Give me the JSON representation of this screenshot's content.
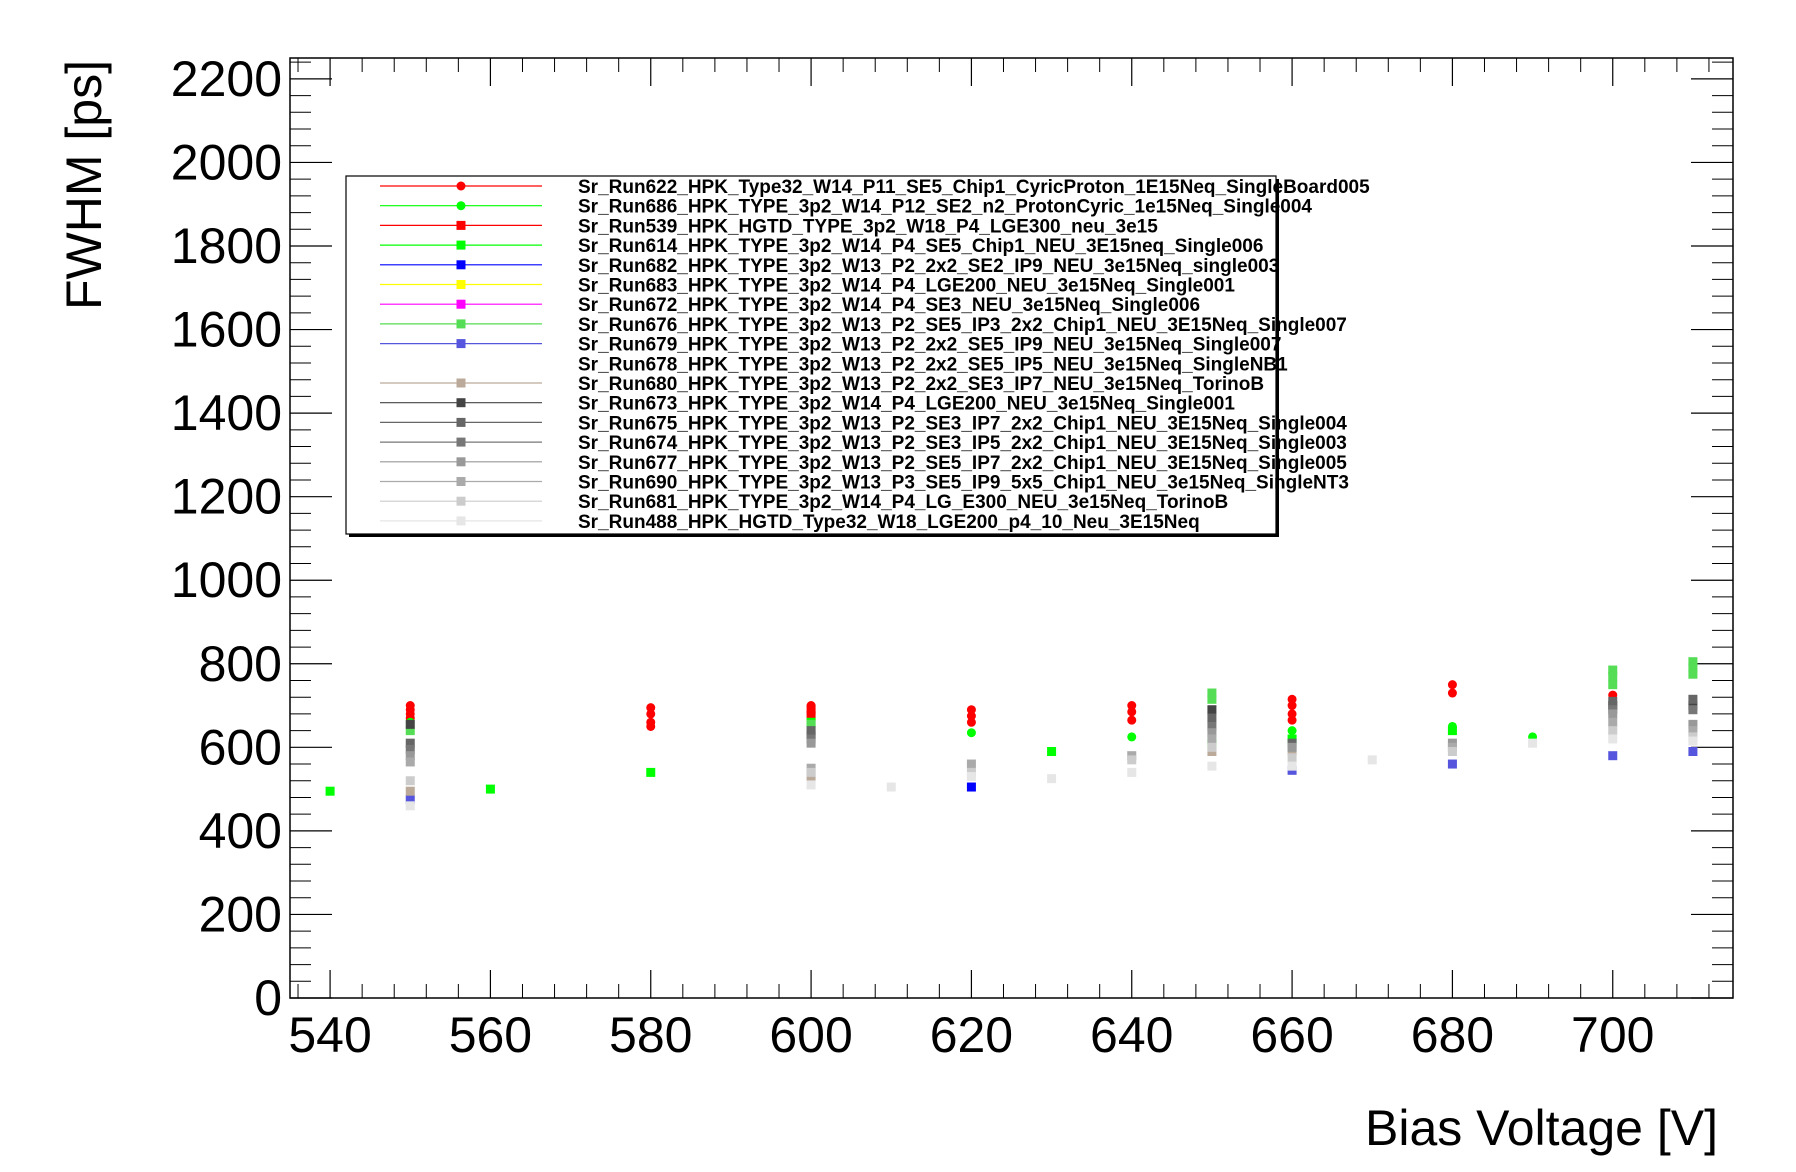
{
  "chart_data": {
    "type": "scatter",
    "title": "",
    "xlabel": "Bias Voltage [V]",
    "ylabel": "FWHM [ps]",
    "xlim": [
      535,
      715
    ],
    "ylim": [
      0,
      2250
    ],
    "x_ticks": [
      "540",
      "560",
      "580",
      "600",
      "620",
      "640",
      "660",
      "680",
      "700"
    ],
    "y_ticks": [
      "0",
      "200",
      "400",
      "600",
      "800",
      "1000",
      "1200",
      "1400",
      "1600",
      "1800",
      "2000",
      "2200"
    ],
    "grid": false,
    "legend_position": "top-left",
    "series": [
      {
        "name": "Sr_Run622_HPK_Type32_W14_P11_SE5_Chip1_CyricProton_1E15Neq_SingleBoard005",
        "color": "#ff0000",
        "marker": "circle",
        "points": [
          [
            550,
            700
          ],
          [
            550,
            690
          ],
          [
            550,
            680
          ],
          [
            550,
            670
          ],
          [
            580,
            695
          ],
          [
            580,
            680
          ],
          [
            580,
            660
          ],
          [
            580,
            650
          ],
          [
            600,
            700
          ],
          [
            600,
            685
          ],
          [
            620,
            690
          ],
          [
            620,
            675
          ],
          [
            620,
            660
          ],
          [
            640,
            700
          ],
          [
            640,
            685
          ],
          [
            640,
            665
          ],
          [
            660,
            715
          ],
          [
            660,
            700
          ],
          [
            660,
            680
          ],
          [
            660,
            665
          ],
          [
            680,
            750
          ],
          [
            680,
            730
          ],
          [
            700,
            725
          ]
        ]
      },
      {
        "name": "Sr_Run686_HPK_TYPE_3p2_W14_P12_SE2_n2_ProtonCyric_1e15Neq_Single004",
        "color": "#00ff00",
        "marker": "circle",
        "points": [
          [
            550,
            660
          ],
          [
            600,
            650
          ],
          [
            620,
            635
          ],
          [
            640,
            625
          ],
          [
            660,
            640
          ],
          [
            680,
            650
          ],
          [
            690,
            625
          ]
        ]
      },
      {
        "name": "Sr_Run539_HPK_HGTD_TYPE_3p2_W18_P4_LGE300_neu_3e15",
        "color": "#ff0000",
        "marker": "square",
        "points": [
          [
            600,
            690
          ],
          [
            600,
            675
          ]
        ]
      },
      {
        "name": "Sr_Run614_HPK_TYPE_3p2_W14_P4_SE5_Chip1_NEU_3E15neq_Single006",
        "color": "#00ff00",
        "marker": "square",
        "points": [
          [
            540,
            495
          ],
          [
            560,
            500
          ],
          [
            580,
            540
          ],
          [
            600,
            660
          ],
          [
            630,
            590
          ],
          [
            650,
            610
          ],
          [
            660,
            620
          ],
          [
            680,
            640
          ]
        ]
      },
      {
        "name": "Sr_Run682_HPK_TYPE_3p2_W13_P2_2x2_SE2_IP9_NEU_3e15Neq_single003",
        "color": "#0000ff",
        "marker": "square",
        "points": [
          [
            620,
            505
          ]
        ]
      },
      {
        "name": "Sr_Run683_HPK_TYPE_3p2_W14_P4_LGE200_NEU_3e15Neq_Single001",
        "color": "#ffff00",
        "marker": "square",
        "points": []
      },
      {
        "name": "Sr_Run672_HPK_TYPE_3p2_W14_P4_SE3_NEU_3e15Neq_Single006",
        "color": "#ff00ff",
        "marker": "square",
        "points": []
      },
      {
        "name": "Sr_Run676_HPK_TYPE_3p2_W13_P2_SE5_IP3_2x2_Chip1_NEU_3E15Neq_Single007",
        "color": "#55dd55",
        "marker": "square",
        "points": [
          [
            550,
            640
          ],
          [
            600,
            655
          ],
          [
            650,
            730
          ],
          [
            650,
            715
          ],
          [
            700,
            785
          ],
          [
            700,
            770
          ],
          [
            700,
            750
          ],
          [
            710,
            805
          ],
          [
            710,
            790
          ],
          [
            710,
            775
          ]
        ]
      },
      {
        "name": "Sr_Run679_HPK_TYPE_3p2_W13_P2_2x2_SE5_IP9_NEU_3e15Neq_Single007",
        "color": "#5555dd",
        "marker": "square",
        "points": [
          [
            550,
            475
          ],
          [
            660,
            545
          ],
          [
            680,
            560
          ],
          [
            700,
            580
          ],
          [
            710,
            590
          ]
        ]
      },
      {
        "name": "Sr_Run678_HPK_TYPE_3p2_W13_P2_2x2_SE5_IP5_NEU_3e15Neq_SingleNB1",
        "color": "#ffffff",
        "marker": "none",
        "points": []
      },
      {
        "name": "Sr_Run680_HPK_TYPE_3p2_W13_P2_2x2_SE3_IP7_NEU_3e15Neq_TorinoB",
        "color": "#bbaa99",
        "marker": "square",
        "points": [
          [
            550,
            495
          ],
          [
            600,
            530
          ],
          [
            650,
            590
          ],
          [
            660,
            590
          ]
        ]
      },
      {
        "name": "Sr_Run673_HPK_TYPE_3p2_W14_P4_LGE200_NEU_3e15Neq_Single001",
        "color": "#444444",
        "marker": "square",
        "points": [
          [
            550,
            655
          ],
          [
            600,
            630
          ],
          [
            650,
            690
          ],
          [
            700,
            700
          ],
          [
            710,
            700
          ]
        ]
      },
      {
        "name": "Sr_Run675_HPK_TYPE_3p2_W13_P2_SE3_IP7_2x2_Chip1_NEU_3E15Neq_Single004",
        "color": "#666666",
        "marker": "square",
        "points": [
          [
            550,
            610
          ],
          [
            600,
            640
          ],
          [
            650,
            670
          ],
          [
            660,
            610
          ],
          [
            700,
            710
          ],
          [
            710,
            715
          ]
        ]
      },
      {
        "name": "Sr_Run674_HPK_TYPE_3p2_W13_P2_SE3_IP5_2x2_Chip1_NEU_3E15Neq_Single003",
        "color": "#777777",
        "marker": "square",
        "points": [
          [
            550,
            595
          ],
          [
            600,
            620
          ],
          [
            650,
            650
          ],
          [
            700,
            690
          ],
          [
            710,
            690
          ]
        ]
      },
      {
        "name": "Sr_Run677_HPK_TYPE_3p2_W13_P2_SE5_IP7_2x2_Chip1_NEU_3E15Neq_Single005",
        "color": "#999999",
        "marker": "square",
        "points": [
          [
            550,
            580
          ],
          [
            600,
            610
          ],
          [
            650,
            635
          ],
          [
            660,
            600
          ],
          [
            680,
            610
          ],
          [
            700,
            680
          ],
          [
            710,
            655
          ]
        ]
      },
      {
        "name": "Sr_Run690_HPK_TYPE_3p2_W13_P3_SE5_IP9_5x5_Chip1_NEU_3e15Neq_SingleNT3",
        "color": "#aaaaaa",
        "marker": "square",
        "points": [
          [
            550,
            565
          ],
          [
            600,
            550
          ],
          [
            620,
            560
          ],
          [
            640,
            580
          ],
          [
            650,
            620
          ],
          [
            680,
            600
          ],
          [
            700,
            660
          ],
          [
            710,
            640
          ]
        ]
      },
      {
        "name": "Sr_Run681_HPK_TYPE_3p2_W14_P4_LG_E300_NEU_3e15Neq_TorinoB",
        "color": "#cccccc",
        "marker": "square",
        "points": [
          [
            550,
            520
          ],
          [
            600,
            540
          ],
          [
            620,
            540
          ],
          [
            640,
            570
          ],
          [
            650,
            600
          ],
          [
            660,
            575
          ],
          [
            680,
            590
          ],
          [
            700,
            640
          ],
          [
            710,
            625
          ]
        ]
      },
      {
        "name": "Sr_Run488_HPK_HGTD_Type32_W18_LGE200_p4_10_Neu_3E15Neq",
        "color": "#e6e6e6",
        "marker": "square",
        "points": [
          [
            550,
            460
          ],
          [
            600,
            510
          ],
          [
            610,
            505
          ],
          [
            620,
            530
          ],
          [
            630,
            525
          ],
          [
            640,
            540
          ],
          [
            650,
            555
          ],
          [
            660,
            555
          ],
          [
            670,
            570
          ],
          [
            690,
            610
          ],
          [
            700,
            620
          ],
          [
            710,
            615
          ]
        ]
      }
    ]
  }
}
